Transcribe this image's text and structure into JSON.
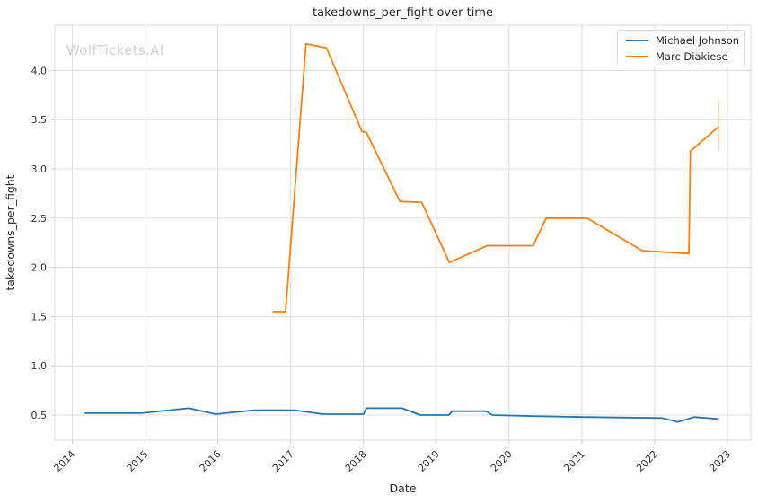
{
  "watermark": "WolfTickets.AI",
  "chart_data": {
    "type": "line",
    "title": "takedowns_per_fight over time",
    "xlabel": "Date",
    "ylabel": "takedowns_per_fight",
    "x_tick_labels": [
      "2014",
      "2015",
      "2016",
      "2017",
      "2018",
      "2019",
      "2020",
      "2021",
      "2022",
      "2023"
    ],
    "y_tick_labels": [
      "0.5",
      "1.0",
      "1.5",
      "2.0",
      "2.5",
      "3.0",
      "3.5",
      "4.0"
    ],
    "xlim": [
      2013.76,
      2023.32
    ],
    "ylim": [
      0.245,
      4.46
    ],
    "grid": true,
    "legend_position": "upper right",
    "colors": {
      "background": "#ffffff",
      "grid": "#dcdcdc",
      "spine": "#d8d8d8",
      "tick": "#c9c9c9",
      "text": "#262626",
      "tick_text": "#333333",
      "watermark": "#d1d1d1",
      "series_blue": "#1f77b4",
      "series_orange": "#ff7f0e"
    },
    "series": [
      {
        "name": "Michael Johnson",
        "color": "#1f77b4",
        "points": [
          [
            2014.17,
            0.52
          ],
          [
            2014.95,
            0.52
          ],
          [
            2015.6,
            0.57
          ],
          [
            2015.97,
            0.51
          ],
          [
            2016.5,
            0.55
          ],
          [
            2017.05,
            0.55
          ],
          [
            2017.45,
            0.51
          ],
          [
            2018.0,
            0.51
          ],
          [
            2018.04,
            0.57
          ],
          [
            2018.53,
            0.57
          ],
          [
            2018.78,
            0.5
          ],
          [
            2019.17,
            0.5
          ],
          [
            2019.22,
            0.54
          ],
          [
            2019.68,
            0.54
          ],
          [
            2019.77,
            0.5
          ],
          [
            2020.3,
            0.49
          ],
          [
            2021.0,
            0.48
          ],
          [
            2022.1,
            0.47
          ],
          [
            2022.32,
            0.43
          ],
          [
            2022.54,
            0.48
          ],
          [
            2022.88,
            0.46
          ]
        ]
      },
      {
        "name": "Marc Diakiese",
        "color": "#ff7f0e",
        "points": [
          [
            2016.75,
            1.55
          ],
          [
            2016.93,
            1.55
          ],
          [
            2017.21,
            4.27
          ],
          [
            2017.49,
            4.23
          ],
          [
            2017.98,
            3.38
          ],
          [
            2018.04,
            3.37
          ],
          [
            2018.5,
            2.67
          ],
          [
            2018.8,
            2.66
          ],
          [
            2019.18,
            2.05
          ],
          [
            2019.7,
            2.22
          ],
          [
            2020.33,
            2.22
          ],
          [
            2020.51,
            2.5
          ],
          [
            2021.07,
            2.5
          ],
          [
            2021.83,
            2.17
          ],
          [
            2022.47,
            2.14
          ],
          [
            2022.49,
            3.18
          ],
          [
            2022.88,
            3.43
          ]
        ],
        "error_bar_last": {
          "x": 2022.88,
          "y_low": 3.18,
          "y_high": 3.7
        }
      }
    ]
  }
}
